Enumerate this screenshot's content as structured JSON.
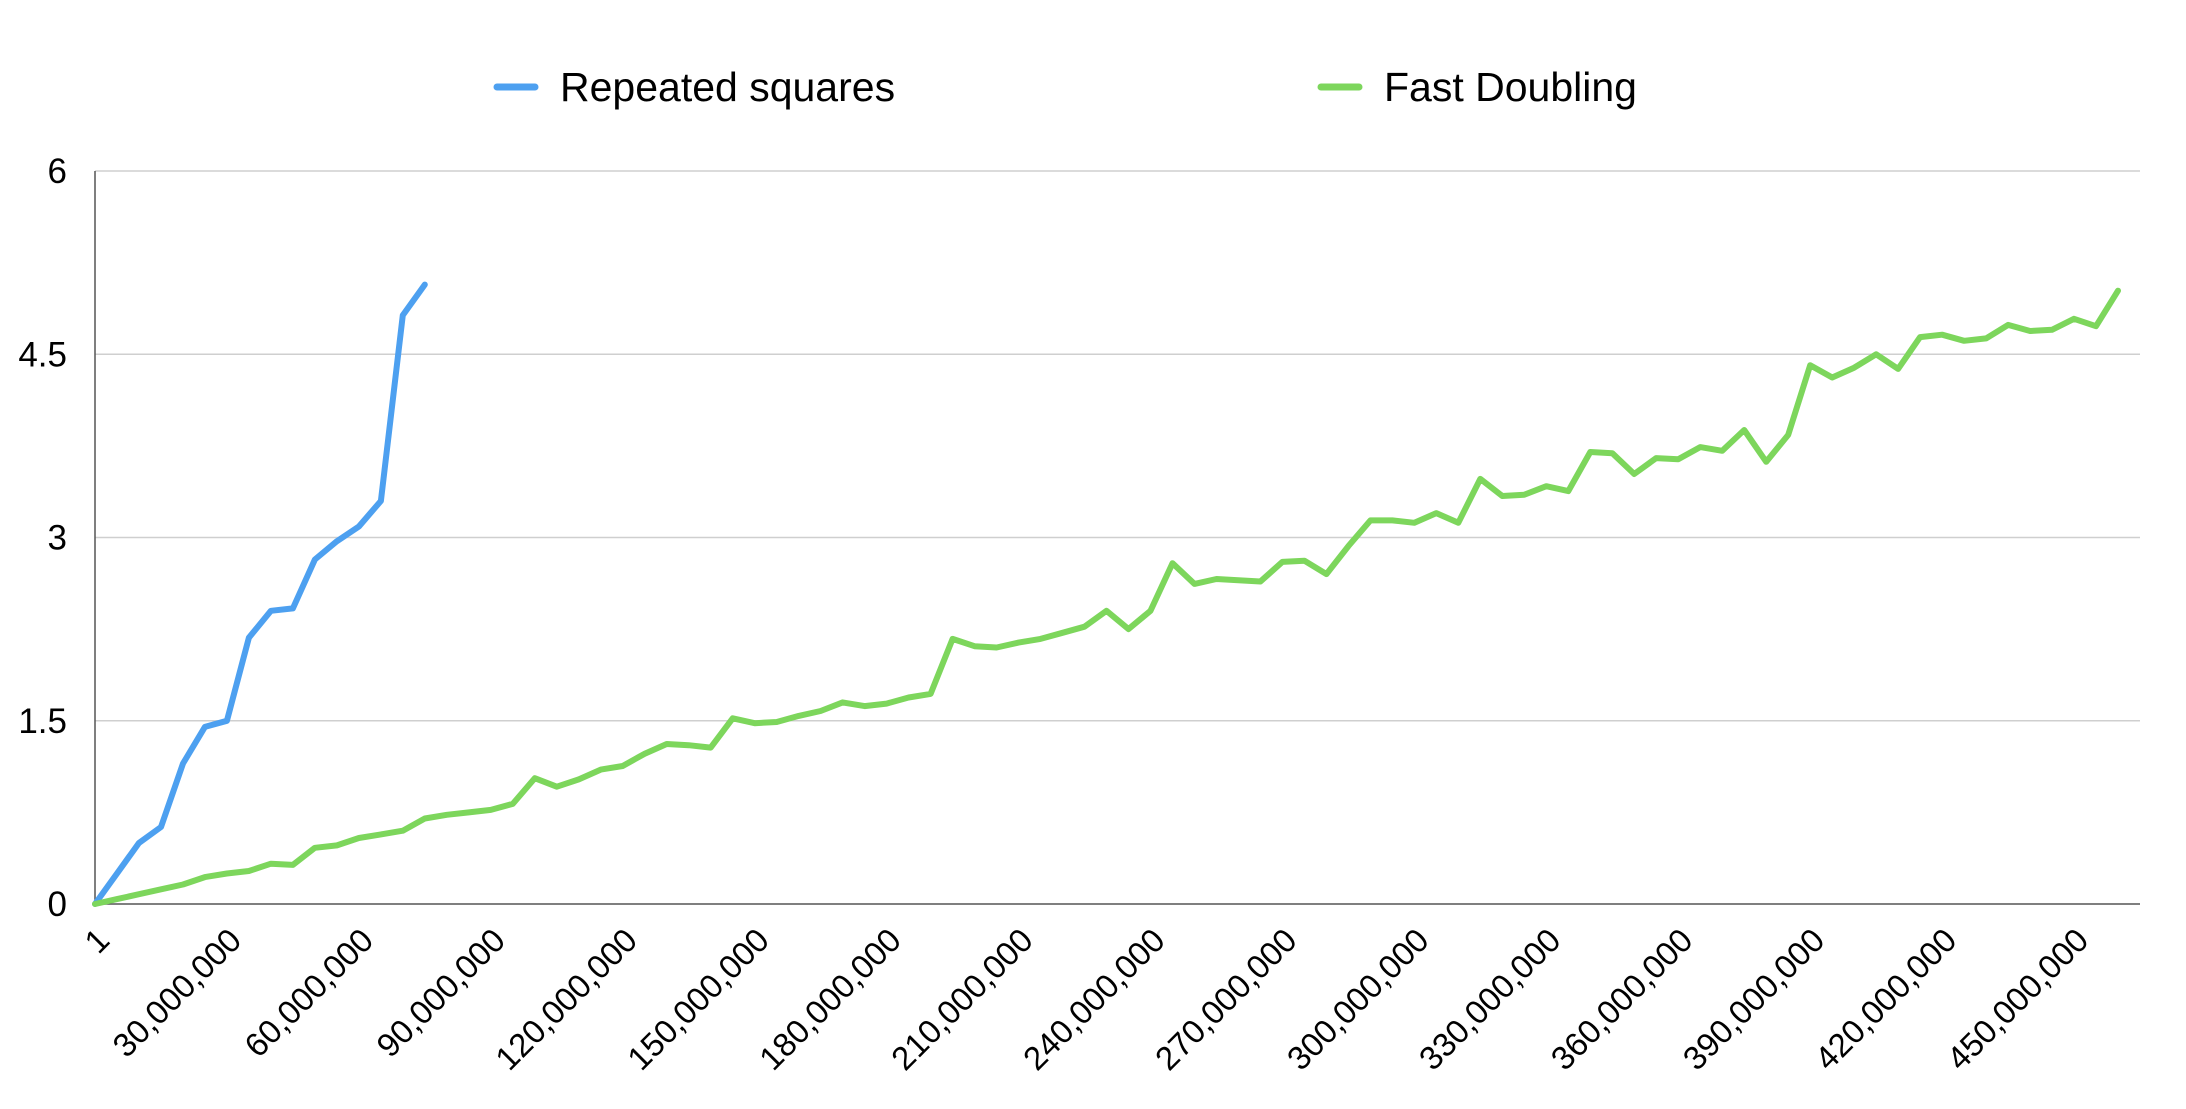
{
  "chart_data": {
    "type": "line",
    "legend_position": "top",
    "grid": true,
    "xlim": [
      1,
      465000000
    ],
    "ylim": [
      0,
      6
    ],
    "yticks": [
      "0",
      "1.5",
      "3",
      "4.5",
      "6"
    ],
    "xticks": [
      {
        "value": 1,
        "label": "1"
      },
      {
        "value": 30000000,
        "label": "30,000,000"
      },
      {
        "value": 60000000,
        "label": "60,000,000"
      },
      {
        "value": 90000000,
        "label": "90,000,000"
      },
      {
        "value": 120000000,
        "label": "120,000,000"
      },
      {
        "value": 150000000,
        "label": "150,000,000"
      },
      {
        "value": 180000000,
        "label": "180,000,000"
      },
      {
        "value": 210000000,
        "label": "210,000,000"
      },
      {
        "value": 240000000,
        "label": "240,000,000"
      },
      {
        "value": 270000000,
        "label": "270,000,000"
      },
      {
        "value": 300000000,
        "label": "300,000,000"
      },
      {
        "value": 330000000,
        "label": "330,000,000"
      },
      {
        "value": 360000000,
        "label": "360,000,000"
      },
      {
        "value": 390000000,
        "label": "390,000,000"
      },
      {
        "value": 420000000,
        "label": "420,000,000"
      },
      {
        "value": 450000000,
        "label": "450,000,000"
      }
    ],
    "series": [
      {
        "name": "Repeated squares",
        "color": "#4da0f0",
        "x": [
          1,
          5000000,
          10000000,
          15000000,
          20000000,
          25000000,
          30000000,
          35000000,
          40000000,
          45000000,
          50000000,
          55000000,
          60000000,
          65000000,
          70000000,
          75000000
        ],
        "y": [
          0,
          0.25,
          0.5,
          0.63,
          1.15,
          1.45,
          1.5,
          2.18,
          2.4,
          2.42,
          2.82,
          2.97,
          3.09,
          3.3,
          4.82,
          5.07
        ]
      },
      {
        "name": "Fast Doubling",
        "color": "#7dd65c",
        "x": [
          1,
          5000000,
          10000000,
          15000000,
          20000000,
          25000000,
          30000000,
          35000000,
          40000000,
          45000000,
          50000000,
          55000000,
          60000000,
          65000000,
          70000000,
          75000000,
          80000000,
          85000000,
          90000000,
          95000000,
          100000000,
          105000000,
          110000000,
          115000000,
          120000000,
          125000000,
          130000000,
          135000000,
          140000000,
          145000000,
          150000000,
          155000000,
          160000000,
          165000000,
          170000000,
          175000000,
          180000000,
          185000000,
          190000000,
          195000000,
          200000000,
          205000000,
          210000000,
          215000000,
          220000000,
          225000000,
          230000000,
          235000000,
          240000000,
          245000000,
          250000000,
          255000000,
          260000000,
          265000000,
          270000000,
          275000000,
          280000000,
          285000000,
          290000000,
          295000000,
          300000000,
          305000000,
          310000000,
          315000000,
          320000000,
          325000000,
          330000000,
          335000000,
          340000000,
          345000000,
          350000000,
          355000000,
          360000000,
          365000000,
          370000000,
          375000000,
          380000000,
          385000000,
          390000000,
          395000000,
          400000000,
          405000000,
          410000000,
          415000000,
          420000000,
          425000000,
          430000000,
          435000000,
          440000000,
          445000000,
          450000000,
          455000000,
          460000000
        ],
        "y": [
          0,
          0.04,
          0.08,
          0.12,
          0.16,
          0.22,
          0.25,
          0.27,
          0.33,
          0.32,
          0.46,
          0.48,
          0.54,
          0.57,
          0.6,
          0.7,
          0.73,
          0.75,
          0.77,
          0.82,
          1.03,
          0.96,
          1.02,
          1.1,
          1.13,
          1.23,
          1.31,
          1.3,
          1.28,
          1.52,
          1.48,
          1.49,
          1.54,
          1.58,
          1.65,
          1.62,
          1.64,
          1.69,
          1.72,
          2.17,
          2.11,
          2.1,
          2.14,
          2.17,
          2.22,
          2.27,
          2.4,
          2.25,
          2.4,
          2.79,
          2.62,
          2.66,
          2.65,
          2.64,
          2.8,
          2.81,
          2.7,
          2.93,
          3.14,
          3.14,
          3.12,
          3.2,
          3.12,
          3.48,
          3.34,
          3.35,
          3.42,
          3.38,
          3.7,
          3.69,
          3.52,
          3.65,
          3.64,
          3.74,
          3.71,
          3.88,
          3.62,
          3.84,
          4.41,
          4.31,
          4.39,
          4.5,
          4.38,
          4.64,
          4.66,
          4.61,
          4.63,
          4.74,
          4.69,
          4.7,
          4.79,
          4.73,
          5.02
        ]
      }
    ]
  }
}
